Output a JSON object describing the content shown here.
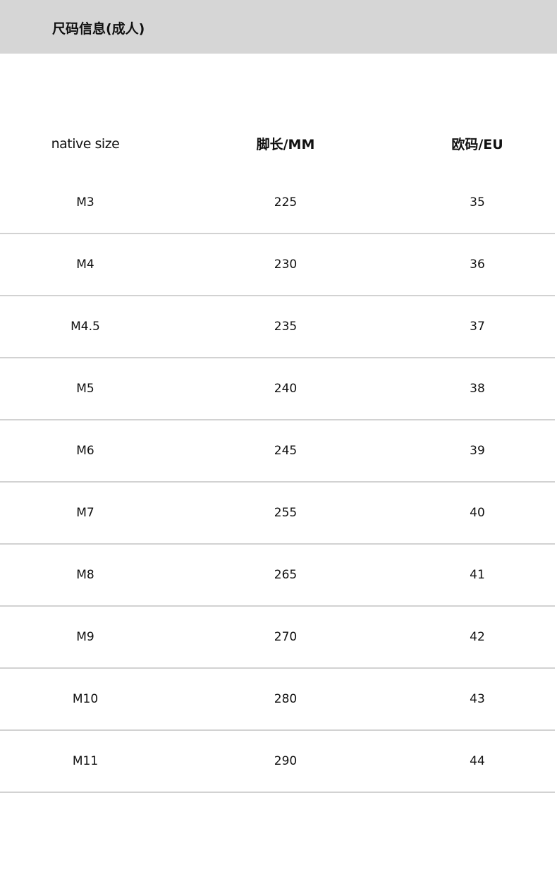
{
  "header": {
    "title": "尺码信息(成人)"
  },
  "table": {
    "columns": [
      "native size",
      "脚长/MM",
      "欧码/EU"
    ],
    "rows": [
      [
        "M3",
        "225",
        "35"
      ],
      [
        "M4",
        "230",
        "36"
      ],
      [
        "M4.5",
        "235",
        "37"
      ],
      [
        "M5",
        "240",
        "38"
      ],
      [
        "M6",
        "245",
        "39"
      ],
      [
        "M7",
        "255",
        "40"
      ],
      [
        "M8",
        "265",
        "41"
      ],
      [
        "M9",
        "270",
        "42"
      ],
      [
        "M10",
        "280",
        "43"
      ],
      [
        "M11",
        "290",
        "44"
      ]
    ]
  }
}
